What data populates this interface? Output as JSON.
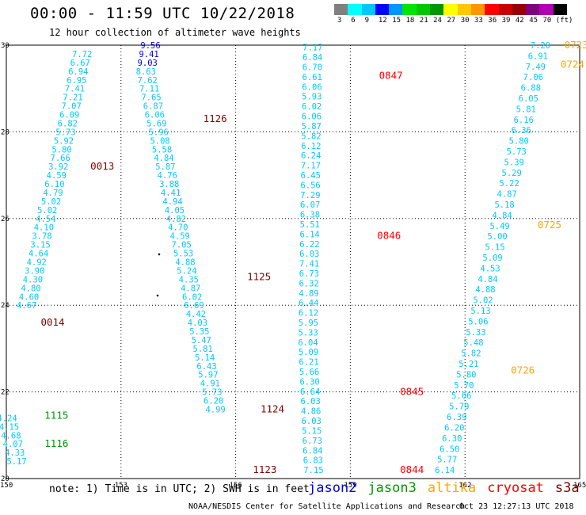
{
  "title": "00:00 - 11:59 UTC 10/22/2018",
  "subtitle": "12 hour collection of altimeter wave heights",
  "colorbar": {
    "colors": [
      "#808080",
      "#00ffff",
      "#00c8ff",
      "#0000ff",
      "#0096ff",
      "#00e600",
      "#00c800",
      "#009600",
      "#ffff00",
      "#ffc800",
      "#ff9600",
      "#ff0000",
      "#c80000",
      "#960000",
      "#800080",
      "#b400b4",
      "#000000"
    ],
    "labels": [
      "3",
      "6",
      "9",
      "12",
      "15",
      "18",
      "21",
      "24",
      "27",
      "30",
      "33",
      "36",
      "39",
      "42",
      "45",
      "70",
      "(ft)"
    ]
  },
  "axes": {
    "x_ticks": [
      "150",
      "153",
      "156",
      "159",
      "162",
      "165"
    ],
    "y_ticks": [
      "30",
      "28",
      "26",
      "24",
      "22",
      "20"
    ],
    "xlim": [
      150,
      165
    ],
    "ylim": [
      20,
      30
    ]
  },
  "satellite_colors": {
    "jason2": "#0000e6",
    "jason3": "#009600",
    "altika": "#ffa500",
    "cryosat": "#ff0000",
    "s3a": "#800000",
    "wave": "#00c8ff"
  },
  "chart_data": {
    "type": "scatter",
    "tracks": [
      {
        "satellite": "s3a",
        "time_label": "0013",
        "label_lon": 152.2,
        "label_lat": 27.2,
        "points": [
          [
            152.01,
            29.8,
            "7.72"
          ],
          [
            151.96,
            29.6,
            "6.67"
          ],
          [
            151.91,
            29.4,
            "6.94"
          ],
          [
            151.87,
            29.2,
            "6.95"
          ],
          [
            151.82,
            29.0,
            "7.41"
          ],
          [
            151.77,
            28.8,
            "7.21"
          ],
          [
            151.73,
            28.6,
            "7.07"
          ],
          [
            151.68,
            28.4,
            "6.09"
          ],
          [
            151.63,
            28.2,
            "6.82"
          ],
          [
            151.58,
            28.0,
            "5.73"
          ],
          [
            151.53,
            27.8,
            "5.92"
          ],
          [
            151.48,
            27.6,
            "5.80"
          ],
          [
            151.44,
            27.4,
            "7.66"
          ],
          [
            151.39,
            27.2,
            "3.92"
          ],
          [
            151.34,
            27.0,
            "4.59"
          ],
          [
            151.29,
            26.8,
            "6.10"
          ],
          [
            151.25,
            26.6,
            "4.79"
          ],
          [
            151.2,
            26.4,
            "5.02"
          ]
        ]
      },
      {
        "satellite": "s3a",
        "time_label": "0014",
        "label_lon": 150.9,
        "label_lat": 23.6,
        "points": [
          [
            151.1,
            26.2,
            "5.02"
          ],
          [
            151.06,
            26.0,
            "4.54"
          ],
          [
            151.01,
            25.8,
            "4.10"
          ],
          [
            150.96,
            25.6,
            "3.78"
          ],
          [
            150.92,
            25.4,
            "3.15"
          ],
          [
            150.87,
            25.2,
            "4.64"
          ],
          [
            150.82,
            25.0,
            "4.92"
          ],
          [
            150.77,
            24.8,
            "3.90"
          ],
          [
            150.72,
            24.6,
            "4.30"
          ],
          [
            150.67,
            24.4,
            "4.80"
          ],
          [
            150.62,
            24.2,
            "4.60"
          ],
          [
            150.56,
            24.0,
            "4.67"
          ]
        ]
      },
      {
        "satellite": "jason2",
        "time_label": "",
        "label_lon": 0,
        "label_lat": 0,
        "points": [
          [
            153.8,
            30.0,
            "9.56"
          ],
          [
            153.76,
            29.8,
            "9.41"
          ],
          [
            153.72,
            29.6,
            "9.03"
          ]
        ]
      },
      {
        "satellite": "s3a",
        "time_label": "1126",
        "label_lon": 155.15,
        "label_lat": 28.3,
        "points": [
          [
            153.68,
            29.4,
            "8.63"
          ],
          [
            153.72,
            29.2,
            "7.62"
          ],
          [
            153.77,
            29.0,
            "7.11"
          ],
          [
            153.82,
            28.8,
            "7.65"
          ],
          [
            153.87,
            28.6,
            "6.87"
          ],
          [
            153.91,
            28.4,
            "6.06"
          ],
          [
            153.96,
            28.2,
            "5.69"
          ],
          [
            154.01,
            28.0,
            "5.96"
          ],
          [
            154.05,
            27.8,
            "5.08"
          ],
          [
            154.1,
            27.6,
            "5.58"
          ],
          [
            154.15,
            27.4,
            "4.84"
          ],
          [
            154.19,
            27.2,
            "5.87"
          ],
          [
            154.24,
            27.0,
            "4.76"
          ],
          [
            154.29,
            26.8,
            "3.88"
          ],
          [
            154.33,
            26.6,
            "4.41"
          ],
          [
            154.38,
            26.4,
            "4.94"
          ],
          [
            154.43,
            26.2,
            "4.05"
          ],
          [
            154.47,
            26.0,
            "4.82"
          ],
          [
            154.52,
            25.8,
            "4.70"
          ],
          [
            154.57,
            25.6,
            "4.59"
          ],
          [
            154.61,
            25.4,
            "7.05"
          ],
          [
            154.66,
            25.2,
            "5.53"
          ],
          [
            154.71,
            25.0,
            "4.88"
          ],
          [
            154.75,
            24.8,
            "5.24"
          ],
          [
            154.8,
            24.6,
            "4.35"
          ],
          [
            154.85,
            24.4,
            "4.87"
          ],
          [
            154.89,
            24.2,
            "6.02"
          ],
          [
            154.94,
            24.0,
            "6.69"
          ],
          [
            154.99,
            23.8,
            "4.42"
          ],
          [
            155.03,
            23.6,
            "4.03"
          ],
          [
            155.08,
            23.4,
            "5.35"
          ],
          [
            155.13,
            23.2,
            "5.47"
          ],
          [
            155.17,
            23.0,
            "5.81"
          ],
          [
            155.22,
            22.8,
            "5.14"
          ],
          [
            155.27,
            22.6,
            "6.43"
          ],
          [
            155.31,
            22.4,
            "5.97"
          ],
          [
            155.36,
            22.2,
            "4.91"
          ],
          [
            155.41,
            22.0,
            "5.73"
          ],
          [
            155.45,
            21.8,
            "6.20"
          ],
          [
            155.5,
            21.6,
            "4.99"
          ]
        ]
      },
      {
        "satellite": "jason3",
        "time_label": "1115",
        "label_lon": 151.0,
        "label_lat": 21.45,
        "points": [
          [
            150.05,
            21.4,
            "4.24"
          ],
          [
            150.1,
            21.2,
            "4.15"
          ],
          [
            150.15,
            21.0,
            "4.68"
          ],
          [
            150.2,
            20.8,
            "4.07"
          ],
          [
            150.25,
            20.6,
            "4.33"
          ],
          [
            150.3,
            20.4,
            "5.17"
          ]
        ]
      }
    ]
  },
  "labels": [
    {
      "text": "1125",
      "sat": "s3a",
      "lon": 156.3,
      "lat": 24.65
    },
    {
      "text": "1124",
      "sat": "s3a",
      "lon": 156.65,
      "lat": 21.6
    },
    {
      "text": "1123",
      "sat": "s3a",
      "lon": 156.45,
      "lat": 20.2
    },
    {
      "text": "1116",
      "sat": "jason3",
      "lon": 151.0,
      "lat": 20.8
    },
    {
      "text": "0847",
      "sat": "cryosat",
      "lon": 159.75,
      "lat": 29.3
    },
    {
      "text": "0846",
      "sat": "cryosat",
      "lon": 159.7,
      "lat": 25.6
    },
    {
      "text": "0845",
      "sat": "cryosat",
      "lon": 160.3,
      "lat": 22.0
    },
    {
      "text": "0844",
      "sat": "cryosat",
      "lon": 160.3,
      "lat": 20.2
    },
    {
      "text": "0723",
      "sat": "altika",
      "lon": 164.6,
      "lat": 30.0
    },
    {
      "text": "0724",
      "sat": "altika",
      "lon": 164.5,
      "lat": 29.55
    },
    {
      "text": "0725",
      "sat": "altika",
      "lon": 163.9,
      "lat": 25.85
    },
    {
      "text": "0726",
      "sat": "altika",
      "lon": 163.2,
      "lat": 22.5
    }
  ],
  "cryosat_track": [
    "7.17",
    "6.84",
    "6.70",
    "6.61",
    "6.06",
    "5.93",
    "6.02",
    "6.06",
    "5.87",
    "5.82",
    "6.12",
    "6.24",
    "7.17",
    "6.45",
    "6.56",
    "7.29",
    "6.07",
    "6.38",
    "5.51",
    "6.14",
    "6.22",
    "6.03",
    "7.41",
    "6.73",
    "6.32",
    "4.89",
    "6.44",
    "6.12",
    "5.95",
    "5.33",
    "6.04",
    "5.09",
    "6.21",
    "5.66",
    "6.30",
    "6.64",
    "6.03",
    "4.86",
    "6.03",
    "5.15",
    "6.73",
    "6.84",
    "6.83",
    "7.15"
  ],
  "altika_track": [
    "7.20",
    "6.91",
    "7.49",
    "7.06",
    "6.88",
    "6.05",
    "5.81",
    "6.16",
    "6.36",
    "5.80",
    "5.73",
    "5.39",
    "5.29",
    "5.22",
    "4.87",
    "5.18",
    "4.84",
    "5.49",
    "5.00",
    "5.15",
    "5.09",
    "4.53",
    "4.84",
    "4.88",
    "5.02",
    "5.13",
    "5.06",
    "5.33",
    "5.48",
    "5.82",
    "5.21",
    "5.80",
    "5.70",
    "5.66",
    "5.79",
    "6.39",
    "6.20",
    "6.30",
    "6.50",
    "5.77",
    "6.14"
  ],
  "note": "note: 1) Time is in UTC; 2) SWH is in feet",
  "legend": [
    "jason2",
    "jason3",
    "altika",
    "cryosat",
    "s3a"
  ],
  "footer": "NOAA/NESDIS Center for Satellite Applications and Research",
  "footer_time": "Oct 23 12:27:13 UTC 2018"
}
